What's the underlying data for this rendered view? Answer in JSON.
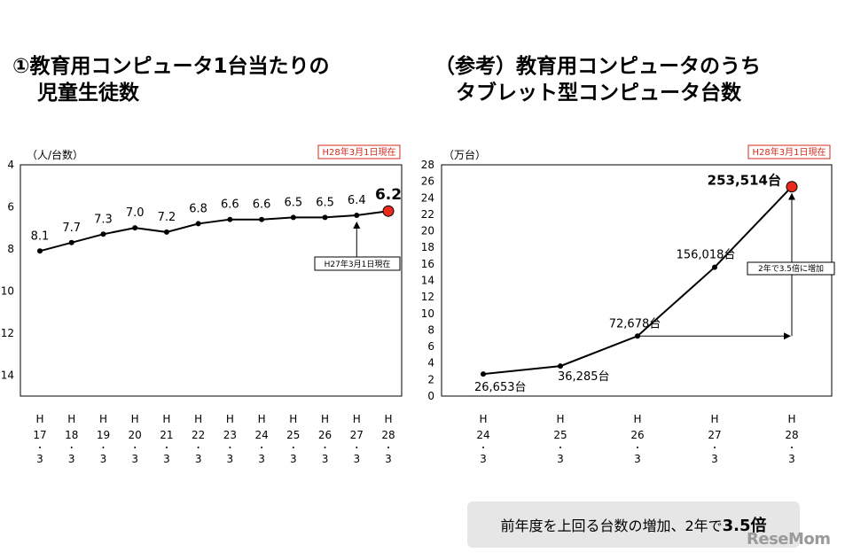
{
  "titles": {
    "left_line1": "①教育用コンピュータ1台当たりの",
    "left_line2": "児童生徒数",
    "right_line1": "（参考）教育用コンピュータのうち",
    "right_line2": "タブレット型コンピュータ台数"
  },
  "summary": {
    "text": "前年度を上回る台数の増加、2年で",
    "emphasis": "3.5倍"
  },
  "logo": "ReseMom",
  "colors": {
    "highlight": "#e8291c",
    "line": "#000000",
    "tag_border": "#d42a1e"
  },
  "chart_data": [
    {
      "type": "line",
      "ylabel": "（人/台数）",
      "ylim": [
        4,
        15
      ],
      "y_inverted": true,
      "yticks": [
        "4",
        "6",
        "8",
        "10",
        "12",
        "14"
      ],
      "categories": [
        {
          "era": "H",
          "year": "17",
          "month": "3"
        },
        {
          "era": "H",
          "year": "18",
          "month": "3"
        },
        {
          "era": "H",
          "year": "19",
          "month": "3"
        },
        {
          "era": "H",
          "year": "20",
          "month": "3"
        },
        {
          "era": "H",
          "year": "21",
          "month": "3"
        },
        {
          "era": "H",
          "year": "22",
          "month": "3"
        },
        {
          "era": "H",
          "year": "23",
          "month": "3"
        },
        {
          "era": "H",
          "year": "24",
          "month": "3"
        },
        {
          "era": "H",
          "year": "25",
          "month": "3"
        },
        {
          "era": "H",
          "year": "26",
          "month": "3"
        },
        {
          "era": "H",
          "year": "27",
          "month": "3"
        },
        {
          "era": "H",
          "year": "28",
          "month": "3"
        }
      ],
      "values": [
        8.1,
        7.7,
        7.3,
        7.0,
        7.2,
        6.8,
        6.6,
        6.6,
        6.5,
        6.5,
        6.4,
        6.2
      ],
      "value_labels": [
        "8.1",
        "7.7",
        "7.3",
        "7.0",
        "7.2",
        "6.8",
        "6.6",
        "6.6",
        "6.5",
        "6.5",
        "6.4",
        "6.2"
      ],
      "date_tag": "H28年3月1日現在",
      "annotation": "H27年3月1日現在"
    },
    {
      "type": "line",
      "ylabel": "（万台）",
      "ylim": [
        0,
        28
      ],
      "yticks": [
        "0",
        "2",
        "4",
        "6",
        "8",
        "10",
        "12",
        "14",
        "16",
        "18",
        "20",
        "22",
        "24",
        "26",
        "28"
      ],
      "categories": [
        {
          "era": "H",
          "year": "24",
          "month": "3"
        },
        {
          "era": "H",
          "year": "25",
          "month": "3"
        },
        {
          "era": "H",
          "year": "26",
          "month": "3"
        },
        {
          "era": "H",
          "year": "27",
          "month": "3"
        },
        {
          "era": "H",
          "year": "28",
          "month": "3"
        }
      ],
      "values": [
        26653,
        36285,
        72678,
        156018,
        253514
      ],
      "value_labels": [
        "26,653台",
        "36,285台",
        "72,678台",
        "156,018台",
        "253,514台"
      ],
      "date_tag": "H28年3月1日現在",
      "annotation": "2年で3.5倍に増加"
    }
  ]
}
